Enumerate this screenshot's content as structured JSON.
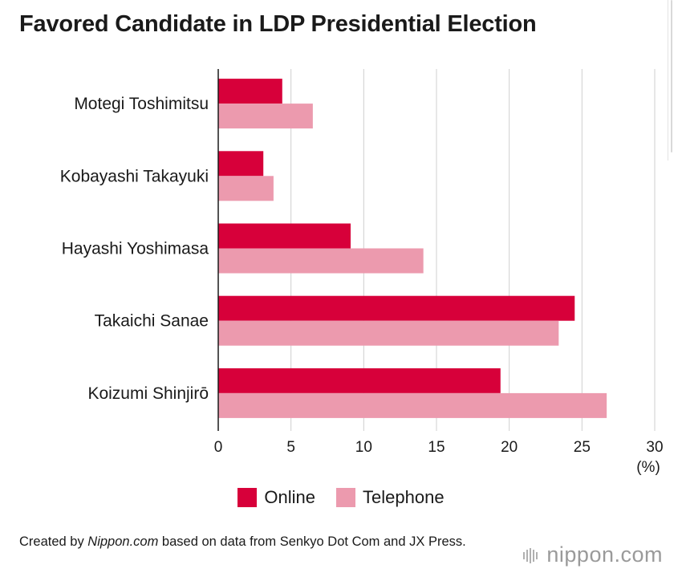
{
  "title": "Favored Candidate in LDP Presidential Election",
  "unit_label": "(%)",
  "legend": [
    {
      "label": "Online",
      "color": "#d7003a"
    },
    {
      "label": "Telephone",
      "color": "#ec9aae"
    }
  ],
  "credit": {
    "prefix": "Created by ",
    "source": "Nippon.com",
    "suffix": " based on data from Senkyo Dot Com and JX Press."
  },
  "brand": {
    "name": "nippon",
    "tld": ".com"
  },
  "chart_data": {
    "type": "bar",
    "orientation": "horizontal",
    "categories": [
      "Motegi Toshimitsu",
      "Kobayashi Takayuki",
      "Hayashi Yoshimasa",
      "Takaichi Sanae",
      "Koizumi Shinjirō"
    ],
    "series": [
      {
        "name": "Online",
        "color": "#d7003a",
        "values": [
          4.4,
          3.1,
          9.1,
          24.5,
          19.4
        ]
      },
      {
        "name": "Telephone",
        "color": "#ec9aae",
        "values": [
          6.5,
          3.8,
          14.1,
          23.4,
          26.7
        ]
      }
    ],
    "xticks": [
      0,
      5,
      10,
      15,
      20,
      25,
      30
    ],
    "xlim": [
      0,
      30
    ],
    "grid": true,
    "xlabel": "(%)",
    "ylabel": "",
    "legend_position": "bottom"
  }
}
